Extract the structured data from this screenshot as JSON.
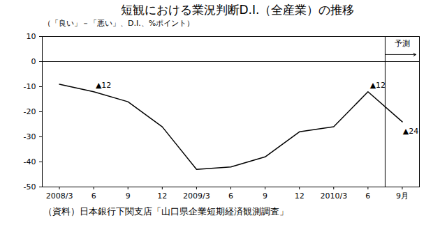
{
  "chart_data": {
    "type": "line",
    "title": "短観における業況判断D.I.（全産業）の推移",
    "subtitle": "（「良い」－「悪い」、D.I.、%ポイント）",
    "caption": "（資料）日本銀行下関支店「山口県企業短期経済観測調査」",
    "categories": [
      "2008/3",
      "6",
      "9",
      "12",
      "2009/3",
      "6",
      "9",
      "12",
      "2010/3",
      "6",
      "9月"
    ],
    "values": [
      -9,
      -12,
      -16,
      -26,
      -43,
      -42,
      -38,
      -28,
      -26,
      -12,
      -24
    ],
    "color": "#000000",
    "ylim": [
      -50,
      10
    ],
    "yticks": [
      -50,
      -40,
      -30,
      -20,
      -10,
      0,
      10
    ],
    "grid": false,
    "annotations": [
      {
        "point": 1,
        "text": "▲12"
      },
      {
        "point": 9,
        "text": "▲12"
      },
      {
        "point": 10,
        "text": "▲24"
      }
    ],
    "forecast": {
      "label": "予測",
      "start": 10
    }
  }
}
